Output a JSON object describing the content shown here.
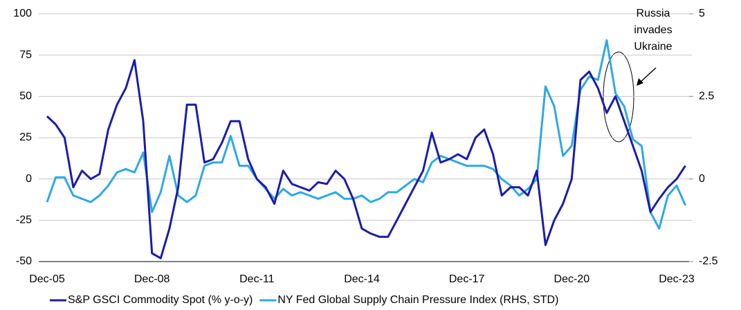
{
  "chart_data": {
    "type": "line",
    "categories": [
      "Dec-05",
      null,
      null,
      null,
      null,
      null,
      null,
      null,
      null,
      null,
      null,
      null,
      "Dec-08",
      null,
      null,
      null,
      null,
      null,
      null,
      null,
      null,
      null,
      null,
      null,
      "Dec-11",
      null,
      null,
      null,
      null,
      null,
      null,
      null,
      null,
      null,
      null,
      null,
      "Dec-14",
      null,
      null,
      null,
      null,
      null,
      null,
      null,
      null,
      null,
      null,
      null,
      "Dec-17",
      null,
      null,
      null,
      null,
      null,
      null,
      null,
      null,
      null,
      null,
      null,
      "Dec-20",
      null,
      null,
      null,
      null,
      null,
      null,
      null,
      null,
      null,
      null,
      null,
      "Dec-23",
      null
    ],
    "series": [
      {
        "name": "S&P GSCI Commodity Spot (% y-o-y)",
        "color": "#1c1ca8",
        "axis": "y",
        "values": [
          38,
          33,
          25,
          -5,
          5,
          0,
          3,
          30,
          45,
          55,
          72,
          35,
          -45,
          -48,
          -30,
          -5,
          45,
          45,
          10,
          12,
          22,
          35,
          35,
          12,
          0,
          -5,
          -15,
          5,
          -3,
          -5,
          -7,
          -2,
          -3,
          5,
          0,
          -12,
          -30,
          -33,
          -35,
          -35,
          -25,
          -15,
          -5,
          5,
          28,
          10,
          12,
          15,
          12,
          25,
          30,
          15,
          -10,
          -5,
          -5,
          -10,
          5,
          -40,
          -25,
          -15,
          0,
          60,
          65,
          55,
          40,
          50,
          35,
          20,
          5,
          -20,
          -12,
          -5,
          0,
          8
        ]
      },
      {
        "name": "NY Fed Global Supply Chain Pressure Index (RHS, STD)",
        "color": "#2ea8e6",
        "axis": "y2",
        "values": [
          -0.7,
          0.05,
          0.05,
          -0.5,
          -0.6,
          -0.7,
          -0.5,
          -0.2,
          0.2,
          0.3,
          0.2,
          0.8,
          -1.0,
          -0.4,
          0.7,
          -0.5,
          -0.7,
          -0.5,
          0.4,
          0.5,
          0.5,
          1.3,
          0.4,
          0.4,
          0.0,
          -0.3,
          -0.6,
          -0.3,
          -0.5,
          -0.4,
          -0.5,
          -0.6,
          -0.5,
          -0.4,
          -0.6,
          -0.6,
          -0.5,
          -0.7,
          -0.6,
          -0.4,
          -0.4,
          -0.2,
          0.0,
          -0.1,
          0.5,
          0.7,
          0.6,
          0.5,
          0.4,
          0.4,
          0.4,
          0.3,
          0.0,
          -0.2,
          -0.5,
          -0.3,
          0.0,
          2.8,
          2.2,
          0.7,
          1.0,
          2.7,
          3.1,
          3.0,
          4.2,
          2.6,
          2.2,
          1.2,
          1.0,
          -1.0,
          -1.5,
          -0.5,
          -0.2,
          -0.8
        ]
      }
    ],
    "ylim": [
      -50,
      100
    ],
    "yticks": [
      -50,
      -25,
      0,
      25,
      50,
      75,
      100
    ],
    "y2lim": [
      -2.5,
      5
    ],
    "y2ticks": [
      -2.5,
      0,
      2.5,
      5
    ],
    "grid": true,
    "annotation": [
      "Russia",
      "invades",
      "Ukraine"
    ]
  }
}
